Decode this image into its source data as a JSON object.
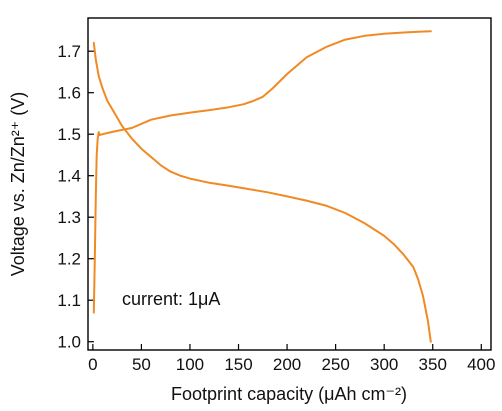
{
  "chart_data": {
    "type": "line",
    "xlabel": "Footprint capacity (μAh cm⁻²)",
    "ylabel": "Voltage vs. Zn/Zn²⁺ (V)",
    "xlim": [
      -5,
      410
    ],
    "ylim": [
      0.98,
      1.78
    ],
    "xticks": [
      0,
      50,
      100,
      150,
      200,
      250,
      300,
      350,
      400
    ],
    "yticks": [
      1.0,
      1.1,
      1.2,
      1.3,
      1.4,
      1.5,
      1.6,
      1.7
    ],
    "grid": false,
    "color": "#F08A24",
    "annotation": "current: 1μA",
    "series": [
      {
        "x": [
          1,
          2,
          3,
          4,
          5,
          6,
          7,
          10,
          15,
          25,
          40,
          60,
          80,
          100,
          120,
          140,
          155,
          165,
          175,
          185,
          200,
          220,
          240,
          260,
          280,
          300,
          320,
          335,
          348
        ],
        "y": [
          1.07,
          1.2,
          1.35,
          1.45,
          1.49,
          1.505,
          1.498,
          1.5,
          1.503,
          1.508,
          1.515,
          1.535,
          1.545,
          1.552,
          1.558,
          1.565,
          1.572,
          1.58,
          1.59,
          1.61,
          1.645,
          1.685,
          1.71,
          1.728,
          1.737,
          1.742,
          1.745,
          1.747,
          1.748
        ]
      },
      {
        "x": [
          1,
          3,
          6,
          10,
          15,
          20,
          30,
          40,
          50,
          60,
          70,
          80,
          90,
          100,
          110,
          120,
          140,
          160,
          180,
          200,
          220,
          240,
          260,
          280,
          300,
          310,
          320,
          330,
          335,
          340,
          345,
          348
        ],
        "y": [
          1.72,
          1.68,
          1.64,
          1.61,
          1.58,
          1.56,
          1.52,
          1.49,
          1.465,
          1.445,
          1.425,
          1.41,
          1.4,
          1.393,
          1.388,
          1.383,
          1.376,
          1.368,
          1.36,
          1.35,
          1.34,
          1.328,
          1.31,
          1.285,
          1.255,
          1.235,
          1.21,
          1.18,
          1.15,
          1.11,
          1.05,
          1.0
        ]
      }
    ]
  }
}
